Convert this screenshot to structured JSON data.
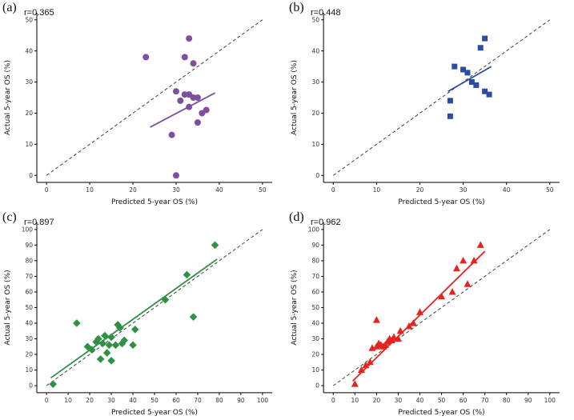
{
  "chart_data": [
    {
      "type": "scatter",
      "panel_label": "(a)",
      "r_label": "r=0.365",
      "marker": "circle",
      "color": "#7d4f9e",
      "xlabel": "Predicted 5-year OS (%)",
      "ylabel": "Actual 5-year OS (%)",
      "xlim": [
        0,
        50
      ],
      "ylim": [
        0,
        50
      ],
      "xticks": [
        0,
        10,
        20,
        30,
        40,
        50
      ],
      "yticks": [
        0,
        10,
        20,
        30,
        40,
        50
      ],
      "identity_line": {
        "style": "dashed",
        "color": "#404040"
      },
      "fit_line": {
        "x": [
          24,
          39
        ],
        "y": [
          15.5,
          26.5
        ]
      },
      "points": [
        [
          23,
          38
        ],
        [
          33,
          44
        ],
        [
          32,
          38
        ],
        [
          34,
          36
        ],
        [
          30,
          27
        ],
        [
          32,
          26
        ],
        [
          33,
          26
        ],
        [
          34,
          25
        ],
        [
          35,
          25
        ],
        [
          31,
          24
        ],
        [
          33,
          22
        ],
        [
          36,
          20
        ],
        [
          35,
          17
        ],
        [
          29,
          13
        ],
        [
          37,
          21
        ],
        [
          30,
          0
        ]
      ]
    },
    {
      "type": "scatter",
      "panel_label": "(b)",
      "r_label": "r=0.448",
      "marker": "square",
      "color": "#2c4d9e",
      "xlabel": "Predicted 5-year OS (%)",
      "ylabel": "Actual 5-year OS (%)",
      "xlim": [
        0,
        50
      ],
      "ylim": [
        0,
        50
      ],
      "xticks": [
        0,
        10,
        20,
        30,
        40,
        50
      ],
      "yticks": [
        0,
        10,
        20,
        30,
        40,
        50
      ],
      "identity_line": {
        "style": "dashed",
        "color": "#404040"
      },
      "fit_line": {
        "x": [
          26.5,
          36.5
        ],
        "y": [
          27,
          35
        ]
      },
      "points": [
        [
          35,
          44
        ],
        [
          34,
          41
        ],
        [
          28,
          35
        ],
        [
          30,
          34
        ],
        [
          31,
          33
        ],
        [
          32,
          30
        ],
        [
          33,
          29
        ],
        [
          27,
          24
        ],
        [
          35,
          27
        ],
        [
          36,
          26
        ],
        [
          27,
          19
        ]
      ]
    },
    {
      "type": "scatter",
      "panel_label": "(c)",
      "r_label": "r=0.897",
      "marker": "diamond",
      "color": "#2e9244",
      "xlabel": "Predicted 5-year OS (%)",
      "ylabel": "Actual 5-year OS (%)",
      "xlim": [
        0,
        100
      ],
      "ylim": [
        0,
        100
      ],
      "xticks": [
        0,
        10,
        20,
        30,
        40,
        50,
        60,
        70,
        80,
        90,
        100
      ],
      "yticks": [
        0,
        10,
        20,
        30,
        40,
        50,
        60,
        70,
        80,
        90,
        100
      ],
      "identity_line": {
        "style": "dashed",
        "color": "#404040"
      },
      "fit_line": {
        "x": [
          2,
          79
        ],
        "y": [
          5,
          81
        ]
      },
      "points": [
        [
          3,
          1
        ],
        [
          14,
          40
        ],
        [
          19,
          25
        ],
        [
          21,
          23
        ],
        [
          23,
          28
        ],
        [
          24,
          30
        ],
        [
          25,
          17
        ],
        [
          26,
          27
        ],
        [
          27,
          32
        ],
        [
          28,
          21
        ],
        [
          29,
          26
        ],
        [
          30,
          31
        ],
        [
          30,
          16
        ],
        [
          32,
          26
        ],
        [
          33,
          39
        ],
        [
          34,
          37
        ],
        [
          35,
          27
        ],
        [
          36,
          29
        ],
        [
          40,
          26
        ],
        [
          41,
          36
        ],
        [
          55,
          55
        ],
        [
          65,
          71
        ],
        [
          68,
          44
        ],
        [
          78,
          90
        ]
      ]
    },
    {
      "type": "scatter",
      "panel_label": "(d)",
      "r_label": "r=0.962",
      "marker": "triangle",
      "color": "#e8231d",
      "xlabel": "Predicted 5-year OS (%)",
      "ylabel": "Actual 5-year OS (%)",
      "xlim": [
        0,
        100
      ],
      "ylim": [
        0,
        100
      ],
      "xticks": [
        0,
        10,
        20,
        30,
        40,
        50,
        60,
        70,
        80,
        90,
        100
      ],
      "yticks": [
        0,
        10,
        20,
        30,
        40,
        50,
        60,
        70,
        80,
        90,
        100
      ],
      "identity_line": {
        "style": "dashed",
        "color": "#404040"
      },
      "fit_line": {
        "x": [
          9,
          70
        ],
        "y": [
          3,
          86
        ]
      },
      "points": [
        [
          10,
          1
        ],
        [
          13,
          10
        ],
        [
          15,
          13
        ],
        [
          17,
          15
        ],
        [
          18,
          24
        ],
        [
          20,
          25
        ],
        [
          20,
          42
        ],
        [
          21,
          27
        ],
        [
          22,
          26
        ],
        [
          23,
          25
        ],
        [
          24,
          26
        ],
        [
          25,
          28
        ],
        [
          26,
          30
        ],
        [
          27,
          29
        ],
        [
          28,
          31
        ],
        [
          30,
          30
        ],
        [
          31,
          35
        ],
        [
          35,
          38
        ],
        [
          37,
          40
        ],
        [
          40,
          47
        ],
        [
          50,
          57
        ],
        [
          55,
          60
        ],
        [
          57,
          75
        ],
        [
          60,
          80
        ],
        [
          62,
          65
        ],
        [
          65,
          80
        ],
        [
          68,
          90
        ]
      ]
    }
  ]
}
